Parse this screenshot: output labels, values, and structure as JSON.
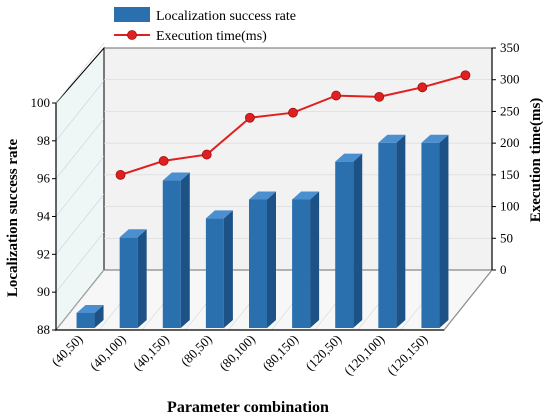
{
  "chart_data": {
    "type": "bar",
    "categories": [
      "(40,50)",
      "(40,100)",
      "(40,150)",
      "(80,50)",
      "(80,100)",
      "(80,150)",
      "(120,50)",
      "(120,100)",
      "(120,150)"
    ],
    "xlabel": "Parameter combination",
    "series": [
      {
        "name": "Localization success rate",
        "type": "bar",
        "axis": "left",
        "color": "#2a6fae",
        "values": [
          88.9,
          92.9,
          95.9,
          93.9,
          94.9,
          94.9,
          96.9,
          97.9,
          97.9
        ]
      },
      {
        "name": "Execution time(ms)",
        "type": "line",
        "axis": "right",
        "color": "#e02020",
        "values": [
          150,
          172,
          182,
          240,
          248,
          275,
          273,
          288,
          307
        ]
      }
    ],
    "ylabel_left": "Localization success rate",
    "ylim_left": [
      88,
      100
    ],
    "yticks_left": [
      "88",
      "90",
      "92",
      "94",
      "96",
      "98",
      "100"
    ],
    "ylabel_right": "Execution time(ms)",
    "ylim_right": [
      0,
      350
    ],
    "yticks_right": [
      "0",
      "50",
      "100",
      "150",
      "200",
      "250",
      "300",
      "350"
    ],
    "legend_position": "top-center",
    "grid": true
  }
}
